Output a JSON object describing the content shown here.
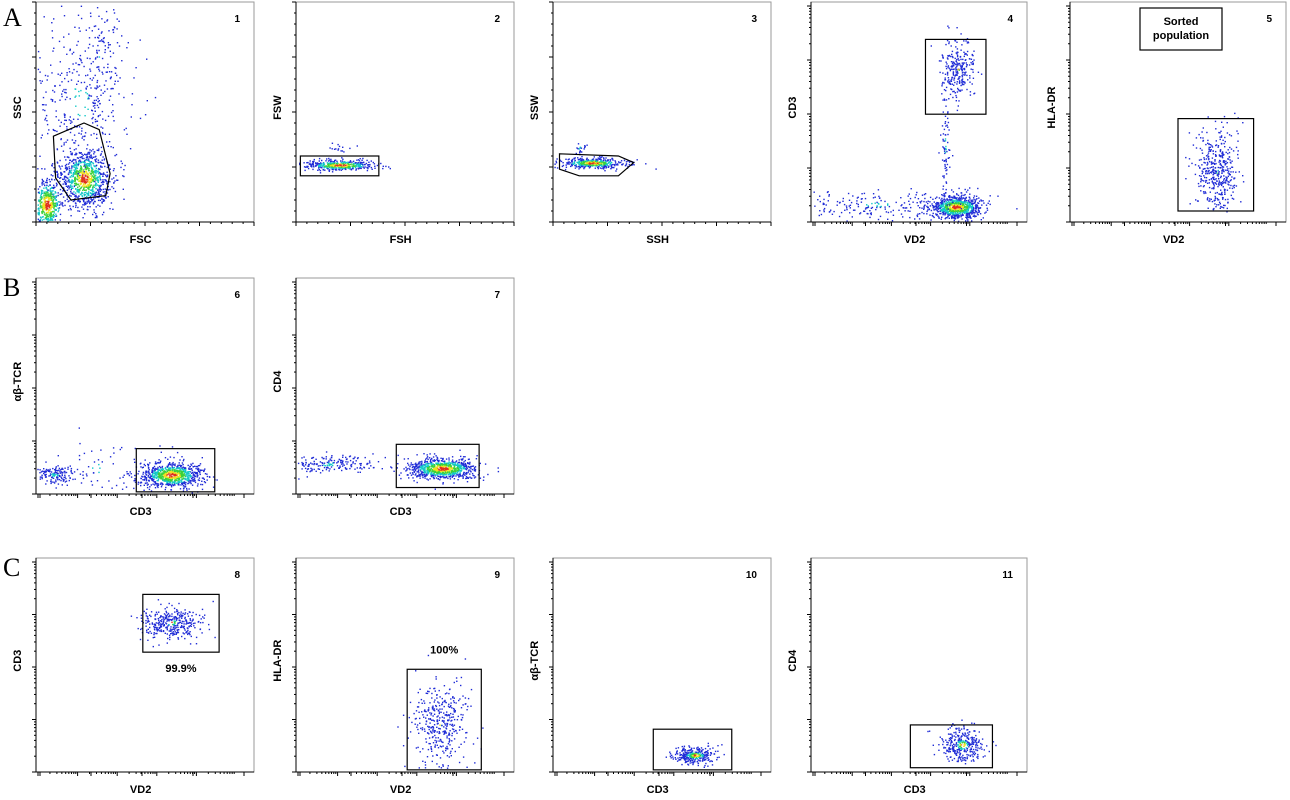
{
  "figure": {
    "panel_letters": [
      "A",
      "B",
      "C"
    ],
    "colors": {
      "dot_low": "#1f2bd6",
      "dot_mid": "#12c8c8",
      "dot_high": "#3ad13a",
      "dot_peak": "#f0e020",
      "dot_max": "#e0301e",
      "frame": "#9a9a9a",
      "gate": "#000000"
    }
  },
  "chart_data": [
    {
      "type": "scatter",
      "id": "1",
      "panel": "A",
      "number": "1",
      "xlabel": "FSC",
      "ylabel": "SSC",
      "x_scale": "linear",
      "y_scale": "linear",
      "gate": "polygon",
      "gate_label": ""
    },
    {
      "type": "scatter",
      "id": "2",
      "panel": "A",
      "number": "2",
      "xlabel": "FSH",
      "ylabel": "FSW",
      "x_scale": "linear",
      "y_scale": "linear",
      "gate": "rectangle",
      "gate_label": ""
    },
    {
      "type": "scatter",
      "id": "3",
      "panel": "A",
      "number": "3",
      "xlabel": "SSH",
      "ylabel": "SSW",
      "x_scale": "linear",
      "y_scale": "linear",
      "gate": "polygon",
      "gate_label": ""
    },
    {
      "type": "scatter",
      "id": "4",
      "panel": "A",
      "number": "4",
      "xlabel": "VD2",
      "ylabel": "CD3",
      "x_scale": "log",
      "y_scale": "log",
      "gate": "rectangle",
      "gate_label": ""
    },
    {
      "type": "scatter",
      "id": "5",
      "panel": "A",
      "number": "5",
      "xlabel": "VD2",
      "ylabel": "HLA-DR",
      "x_scale": "log",
      "y_scale": "log",
      "gate": "rectangle",
      "gate_label": "",
      "annotation_box": [
        "Sorted",
        "population"
      ]
    },
    {
      "type": "scatter",
      "id": "6",
      "panel": "B",
      "number": "6",
      "xlabel": "CD3",
      "ylabel": "αβ-TCR",
      "x_scale": "log",
      "y_scale": "log",
      "gate": "rectangle",
      "gate_label": ""
    },
    {
      "type": "scatter",
      "id": "7",
      "panel": "B",
      "number": "7",
      "xlabel": "CD3",
      "ylabel": "CD4",
      "x_scale": "log",
      "y_scale": "log",
      "gate": "rectangle",
      "gate_label": ""
    },
    {
      "type": "scatter",
      "id": "8",
      "panel": "C",
      "number": "8",
      "xlabel": "VD2",
      "ylabel": "CD3",
      "x_scale": "log",
      "y_scale": "log",
      "gate": "rectangle",
      "gate_label": "99.9%"
    },
    {
      "type": "scatter",
      "id": "9",
      "panel": "C",
      "number": "9",
      "xlabel": "VD2",
      "ylabel": "HLA-DR",
      "x_scale": "log",
      "y_scale": "log",
      "gate": "rectangle",
      "gate_label": "100%"
    },
    {
      "type": "scatter",
      "id": "10",
      "panel": "C",
      "number": "10",
      "xlabel": "CD3",
      "ylabel": "αβ-TCR",
      "x_scale": "log",
      "y_scale": "log",
      "gate": "rectangle",
      "gate_label": ""
    },
    {
      "type": "scatter",
      "id": "11",
      "panel": "C",
      "number": "11",
      "xlabel": "CD3",
      "ylabel": "CD4",
      "x_scale": "log",
      "y_scale": "log",
      "gate": "rectangle",
      "gate_label": ""
    }
  ]
}
